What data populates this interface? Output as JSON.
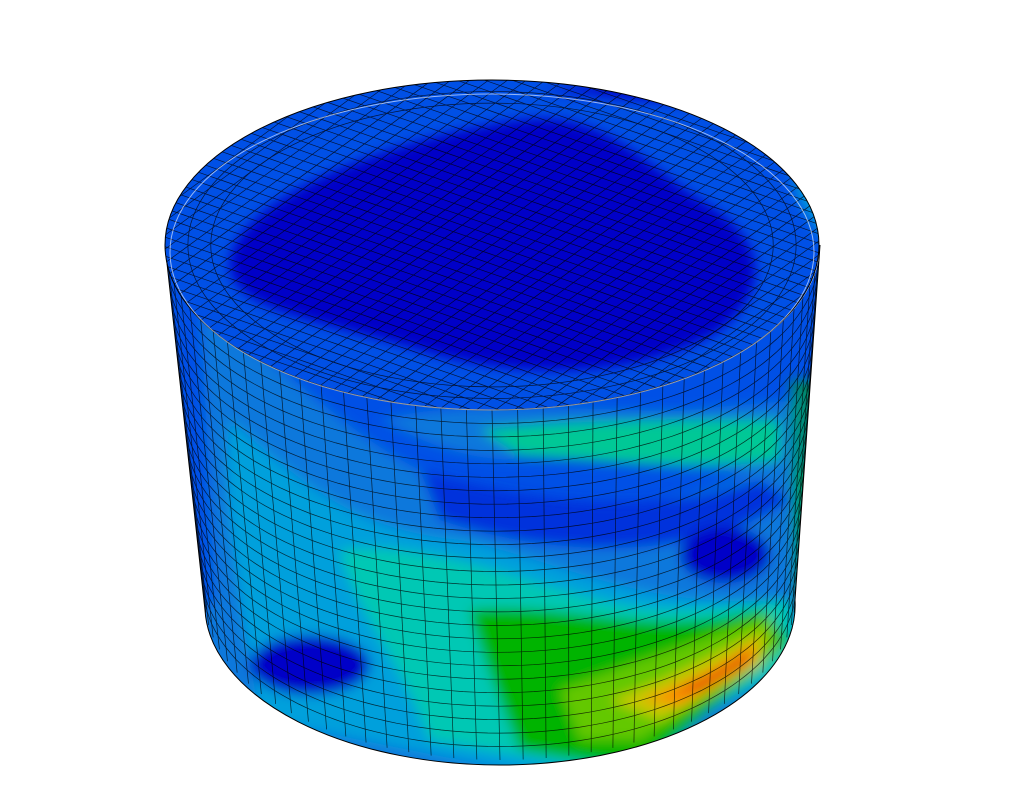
{
  "viewport": {
    "background": "#ffffff",
    "model": "cylinder-contour-plot",
    "contour_palette": [
      "#0000c8",
      "#0032dc",
      "#0050e6",
      "#0a78dc",
      "#00a0dc",
      "#00c8c8",
      "#00c896",
      "#00b400",
      "#64c800",
      "#c8c800",
      "#ff8c00",
      "#e61e00",
      "#b40000"
    ],
    "mesh_line_color": "#000000"
  }
}
